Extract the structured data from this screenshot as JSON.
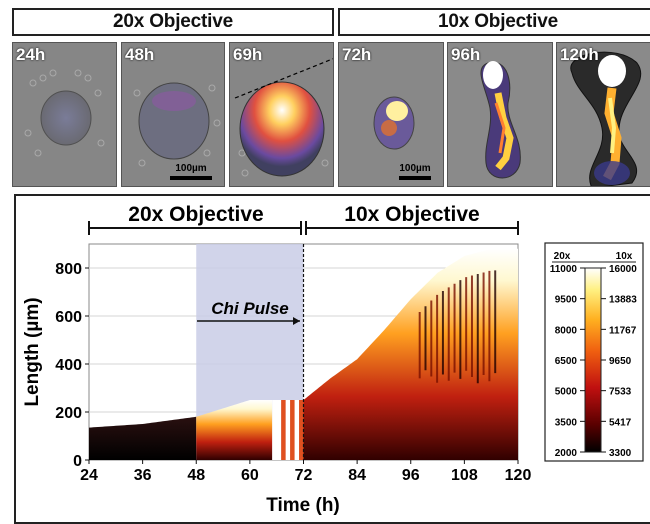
{
  "top": {
    "left_header": "20x Objective",
    "right_header": "10x Objective",
    "panels": [
      {
        "time": "24h"
      },
      {
        "time": "48h"
      },
      {
        "time": "69h"
      },
      {
        "time": "72h"
      },
      {
        "time": "96h"
      },
      {
        "time": "120h"
      }
    ],
    "scale_20x": "100µm",
    "scale_10x": "100µm"
  },
  "chart": {
    "range_20x": "20x Objective",
    "range_10x": "10x Objective",
    "chi_pulse": "Chi Pulse",
    "legend_head_20x": "20x",
    "legend_head_10x": "10x",
    "legend_20x_ticks": [
      "11000",
      "9500",
      "8000",
      "6500",
      "5000",
      "3500",
      "2000"
    ],
    "legend_10x_ticks": [
      "16000",
      "13883",
      "11767",
      "9650",
      "7533",
      "5417",
      "3300"
    ]
  },
  "chart_data": {
    "type": "heatmap",
    "xlabel": "Time (h)",
    "ylabel": "Length (µm)",
    "xlim": [
      24,
      120
    ],
    "ylim": [
      0,
      900
    ],
    "x_ticks": [
      24,
      36,
      48,
      60,
      72,
      84,
      96,
      108,
      120
    ],
    "y_ticks": [
      0,
      200,
      400,
      600,
      800
    ],
    "shaded_region": [
      48,
      72
    ],
    "objective_switch_x": 72,
    "grid": true,
    "colormap": [
      "#000000",
      "#5a0000",
      "#c01010",
      "#f06010",
      "#ffb020",
      "#fff080",
      "#ffffff"
    ],
    "edge_profile": [
      {
        "x": 24,
        "y": 135
      },
      {
        "x": 36,
        "y": 150
      },
      {
        "x": 48,
        "y": 180
      },
      {
        "x": 60,
        "y": 250
      },
      {
        "x": 72,
        "y": 250
      },
      {
        "x": 78,
        "y": 340
      },
      {
        "x": 84,
        "y": 420
      },
      {
        "x": 90,
        "y": 540
      },
      {
        "x": 96,
        "y": 670
      },
      {
        "x": 102,
        "y": 780
      },
      {
        "x": 108,
        "y": 850
      },
      {
        "x": 114,
        "y": 880
      },
      {
        "x": 120,
        "y": 880
      }
    ]
  }
}
